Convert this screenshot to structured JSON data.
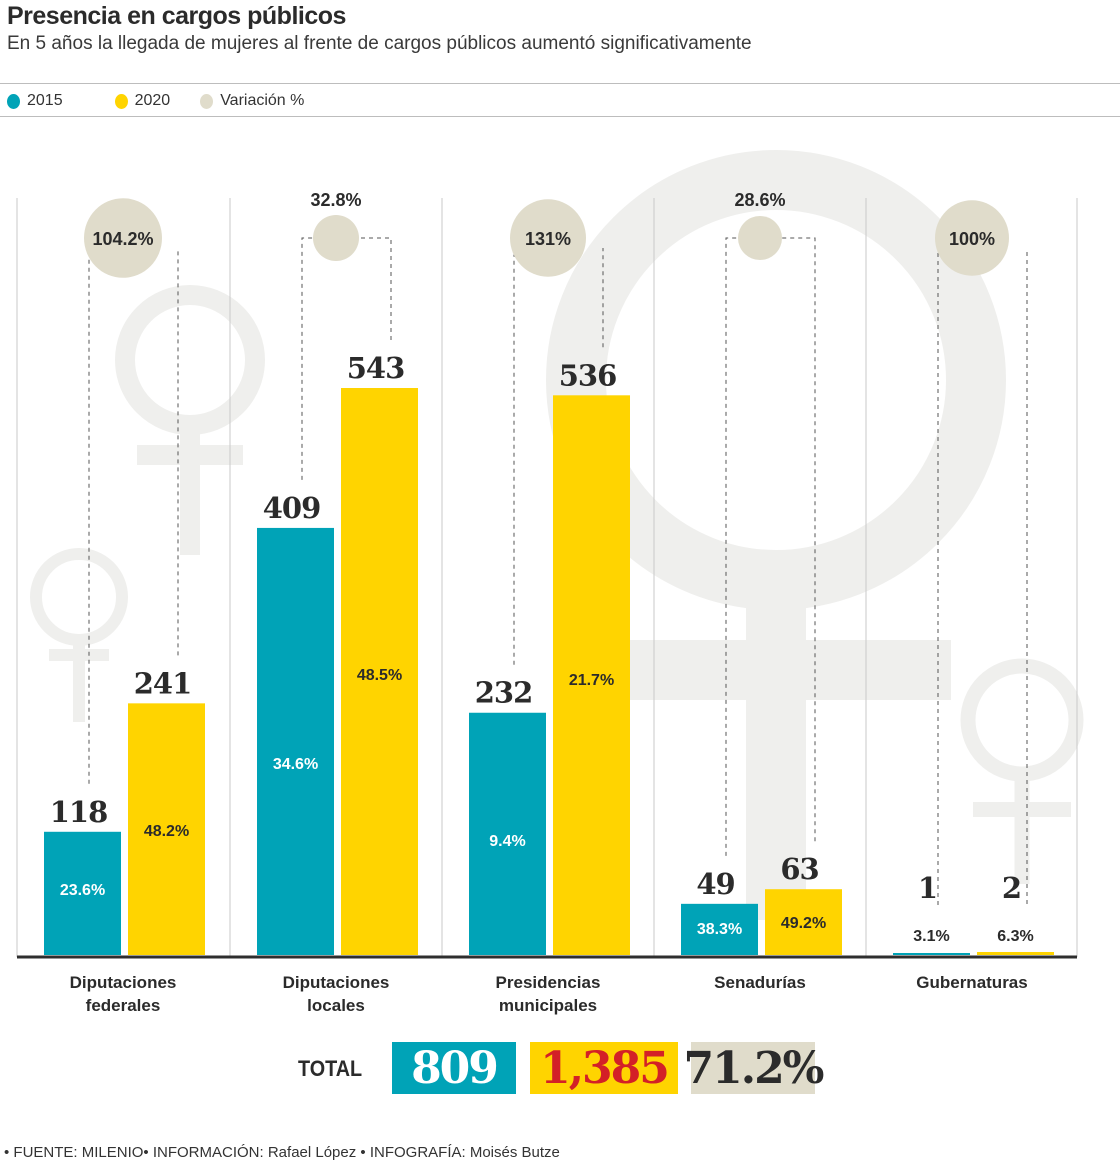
{
  "header": {
    "title": "Presencia en cargos públicos",
    "subtitle": "En 5 años la llegada de mujeres al frente de cargos públicos aumentó significativamente"
  },
  "legend": [
    {
      "label": "2015",
      "color": "#00a3b7"
    },
    {
      "label": "2020",
      "color": "#ffd400"
    },
    {
      "label": "Variación %",
      "color": "#e0dccb"
    }
  ],
  "chart_data": {
    "type": "bar",
    "title": "Presencia en cargos públicos",
    "subtitle": "En 5 años la llegada de mujeres al frente de cargos públicos aumentó significativamente",
    "xlabel": "",
    "ylabel": "",
    "ylim": [
      0,
      543
    ],
    "grid": false,
    "legend_position": "top-left",
    "categories": [
      [
        "Diputaciones",
        "federales"
      ],
      [
        "Diputaciones",
        "locales"
      ],
      [
        "Presidencias",
        "municipales"
      ],
      [
        "Senadurías"
      ],
      [
        "Gubernaturas"
      ]
    ],
    "series": [
      {
        "name": "2015",
        "color": "#00a3b7",
        "values": [
          118,
          409,
          232,
          49,
          1
        ],
        "value_labels": [
          "118",
          "409",
          "232",
          "49",
          "1"
        ],
        "share_labels": [
          "23.6%",
          "34.6%",
          "9.4%",
          "38.3%",
          "3.1%"
        ]
      },
      {
        "name": "2020",
        "color": "#ffd400",
        "values": [
          241,
          543,
          536,
          63,
          2
        ],
        "value_labels": [
          "241",
          "543",
          "536",
          "63",
          "2"
        ],
        "share_labels": [
          "48.2%",
          "48.5%",
          "21.7%",
          "49.2%",
          "6.3%"
        ]
      }
    ],
    "variation": {
      "name": "Variación %",
      "color": "#e0dccb",
      "values": [
        104.2,
        32.8,
        131,
        28.6,
        100
      ],
      "labels": [
        "104.2%",
        "32.8%",
        "131%",
        "28.6%",
        "100%"
      ]
    }
  },
  "totals": {
    "label": "TOTAL",
    "values": [
      {
        "text": "809",
        "bg": "#00a3b7",
        "fg": "#ffffff"
      },
      {
        "text": "1,385",
        "bg": "#ffd400",
        "fg": "#d32027"
      },
      {
        "text": "71.2%",
        "bg": "#e0dccb",
        "fg": "#2b2b2b"
      }
    ]
  },
  "footer": "• FUENTE: MILENIO• INFORMACIÓN: Rafael López • INFOGRAFÍA: Moisés Butze"
}
